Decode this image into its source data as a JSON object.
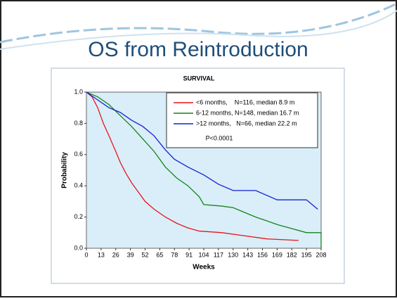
{
  "slide_title": "OS from Reintroduction",
  "chart_data": {
    "type": "line",
    "title": "SURVIVAL",
    "xlabel": "Weeks",
    "ylabel": "Probability",
    "xlim": [
      0,
      208
    ],
    "xticks": [
      0,
      13,
      26,
      39,
      52,
      65,
      78,
      91,
      104,
      117,
      130,
      143,
      156,
      169,
      182,
      195,
      208
    ],
    "ylim": [
      0,
      1
    ],
    "yticks": [
      {
        "value": 0,
        "label": "0.0"
      },
      0.2,
      0.4,
      0.6,
      0.8,
      {
        "value": 1,
        "label": "1.0"
      }
    ],
    "annotation": "P<0.0001",
    "series": [
      {
        "name": "<6 months,    N=116, median 8.9 m",
        "color": "#e8141b",
        "x": [
          0,
          5,
          10,
          15,
          20,
          26,
          30,
          35,
          40,
          45,
          52,
          60,
          70,
          80,
          90,
          100,
          120,
          140,
          160,
          188
        ],
        "values": [
          1.0,
          0.97,
          0.9,
          0.8,
          0.72,
          0.62,
          0.55,
          0.48,
          0.42,
          0.37,
          0.3,
          0.25,
          0.2,
          0.16,
          0.13,
          0.11,
          0.1,
          0.08,
          0.06,
          0.05
        ]
      },
      {
        "name": "6-12 months, N=148, median 16.7 m",
        "color": "#12851a",
        "x": [
          0,
          10,
          20,
          30,
          40,
          50,
          60,
          70,
          80,
          90,
          100,
          104,
          120,
          130,
          150,
          170,
          180,
          195,
          208,
          208
        ],
        "values": [
          1.0,
          0.97,
          0.92,
          0.85,
          0.78,
          0.7,
          0.62,
          0.52,
          0.45,
          0.4,
          0.33,
          0.28,
          0.27,
          0.26,
          0.2,
          0.15,
          0.13,
          0.1,
          0.1,
          0.0
        ]
      },
      {
        "name": ">12 months,   N=66, median 22.2 m",
        "color": "#1420d8",
        "x": [
          0,
          10,
          20,
          30,
          40,
          50,
          60,
          70,
          78,
          90,
          104,
          117,
          130,
          150,
          169,
          195,
          205
        ],
        "values": [
          1.0,
          0.95,
          0.9,
          0.87,
          0.82,
          0.78,
          0.72,
          0.63,
          0.57,
          0.52,
          0.47,
          0.41,
          0.37,
          0.37,
          0.31,
          0.31,
          0.25
        ]
      }
    ]
  }
}
